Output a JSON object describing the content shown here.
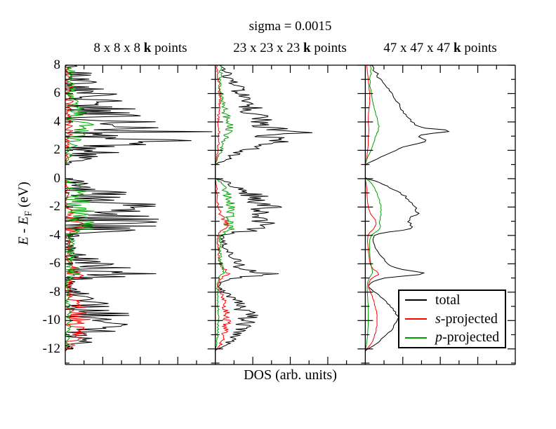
{
  "figure": {
    "title": "sigma = 0.0015",
    "background_color": "#ffffff"
  },
  "chart_data": {
    "type": "line",
    "title": "sigma = 0.0015",
    "xlabel": "DOS (arb. units)",
    "ylabel": "E - EF (eV)",
    "ylabel_parts": {
      "e": "E",
      "dash": " - ",
      "sub": "F",
      "unit": " (eV)"
    },
    "orientation": "DOS value on x axis, energy on y axis, three side-by-side panels",
    "x_axis": {
      "label": "DOS (arb. units)",
      "numeric_labels_shown": false,
      "major_divisions_per_panel": 4,
      "minor_per_major": 2
    },
    "energy_axis": {
      "min": -13.1,
      "max": 8,
      "major_ticks": [
        8,
        6,
        4,
        2,
        0,
        -2,
        -4,
        -6,
        -8,
        -10,
        -12
      ],
      "tick_labels": [
        "8",
        "6",
        "4",
        "2",
        "0",
        "-2",
        "-4",
        "-6",
        "-8",
        "-10",
        "-12"
      ],
      "minor_tick_step": 1
    },
    "panels": [
      {
        "title_prefix": "8 x 8 x 8 ",
        "title_bold": "k",
        "title_suffix": " points",
        "sampling_noise": 1.15,
        "noise_seed": 8,
        "sample_step_eV": 0.07
      },
      {
        "title_prefix": "23 x 23 x 23 ",
        "title_bold": "k",
        "title_suffix": " points",
        "sampling_noise": 0.35,
        "noise_seed": 23,
        "sample_step_eV": 0.07
      },
      {
        "title_prefix": "47 x 47 x 47 ",
        "title_bold": "k",
        "title_suffix": " points",
        "sampling_noise": 0.04,
        "noise_seed": 47,
        "sample_step_eV": 0.12
      }
    ],
    "series": [
      {
        "name": "total",
        "color": "#000000",
        "points": [
          [
            8,
            0.04
          ],
          [
            7.8,
            0.06
          ],
          [
            7.6,
            0.05
          ],
          [
            7.4,
            0.09
          ],
          [
            7.2,
            0.07
          ],
          [
            7,
            0.11
          ],
          [
            6.8,
            0.12
          ],
          [
            6.6,
            0.13
          ],
          [
            6.4,
            0.15
          ],
          [
            6.2,
            0.16
          ],
          [
            6,
            0.18
          ],
          [
            5.8,
            0.19
          ],
          [
            5.6,
            0.2
          ],
          [
            5.4,
            0.22
          ],
          [
            5.2,
            0.23
          ],
          [
            5,
            0.24
          ],
          [
            4.8,
            0.25
          ],
          [
            4.6,
            0.26
          ],
          [
            4.4,
            0.28
          ],
          [
            4.2,
            0.3
          ],
          [
            4,
            0.31
          ],
          [
            3.8,
            0.33
          ],
          [
            3.7,
            0.35
          ],
          [
            3.6,
            0.38
          ],
          [
            3.5,
            0.45
          ],
          [
            3.4,
            0.56
          ],
          [
            3.35,
            0.6
          ],
          [
            3.25,
            0.5
          ],
          [
            3.1,
            0.38
          ],
          [
            3,
            0.34
          ],
          [
            2.9,
            0.36
          ],
          [
            2.8,
            0.4
          ],
          [
            2.7,
            0.42
          ],
          [
            2.6,
            0.4
          ],
          [
            2.5,
            0.36
          ],
          [
            2.4,
            0.32
          ],
          [
            2.2,
            0.25
          ],
          [
            2,
            0.2
          ],
          [
            1.8,
            0.16
          ],
          [
            1.6,
            0.12
          ],
          [
            1.4,
            0.08
          ],
          [
            1.2,
            0.04
          ],
          [
            1.05,
            0.01
          ],
          [
            1,
            0
          ],
          [
            0,
            0
          ],
          [
            -0.1,
            0.05
          ],
          [
            -0.3,
            0.1
          ],
          [
            -0.6,
            0.16
          ],
          [
            -0.9,
            0.21
          ],
          [
            -1.2,
            0.26
          ],
          [
            -1.5,
            0.29
          ],
          [
            -1.8,
            0.31
          ],
          [
            -2.1,
            0.34
          ],
          [
            -2.4,
            0.35
          ],
          [
            -2.6,
            0.33
          ],
          [
            -2.8,
            0.29
          ],
          [
            -3,
            0.29
          ],
          [
            -3.2,
            0.31
          ],
          [
            -3.4,
            0.31
          ],
          [
            -3.6,
            0.28
          ],
          [
            -3.7,
            0.2
          ],
          [
            -3.8,
            0.12
          ],
          [
            -4,
            0.06
          ],
          [
            -4.3,
            0.05
          ],
          [
            -4.7,
            0.06
          ],
          [
            -5.1,
            0.08
          ],
          [
            -5.5,
            0.11
          ],
          [
            -5.9,
            0.14
          ],
          [
            -6.2,
            0.18
          ],
          [
            -6.4,
            0.24
          ],
          [
            -6.55,
            0.34
          ],
          [
            -6.7,
            0.42
          ],
          [
            -6.8,
            0.34
          ],
          [
            -6.9,
            0.22
          ],
          [
            -7,
            0.13
          ],
          [
            -7.2,
            0.06
          ],
          [
            -7.4,
            0.03
          ],
          [
            -7.6,
            0.02
          ],
          [
            -7.9,
            0.05
          ],
          [
            -8.2,
            0.09
          ],
          [
            -8.6,
            0.13
          ],
          [
            -9,
            0.17
          ],
          [
            -9.4,
            0.2
          ],
          [
            -9.7,
            0.22
          ],
          [
            -10,
            0.22
          ],
          [
            -10.3,
            0.2
          ],
          [
            -10.7,
            0.17
          ],
          [
            -11.1,
            0.13
          ],
          [
            -11.5,
            0.09
          ],
          [
            -11.8,
            0.05
          ],
          [
            -12,
            0.02
          ],
          [
            -12.1,
            0
          ],
          [
            -13.1,
            0
          ]
        ]
      },
      {
        "name": "s-projected",
        "color": "#ff0000",
        "points": [
          [
            8,
            0.01
          ],
          [
            7.4,
            0.015
          ],
          [
            7,
            0.02
          ],
          [
            6.4,
            0.025
          ],
          [
            6,
            0.03
          ],
          [
            5.4,
            0.03
          ],
          [
            5,
            0.025
          ],
          [
            4.4,
            0.02
          ],
          [
            4,
            0.02
          ],
          [
            3.4,
            0.025
          ],
          [
            3,
            0.02
          ],
          [
            2.4,
            0.02
          ],
          [
            2,
            0.015
          ],
          [
            1.5,
            0.01
          ],
          [
            1.2,
            0.005
          ],
          [
            1,
            0
          ],
          [
            0,
            0
          ],
          [
            -0.3,
            0.005
          ],
          [
            -0.7,
            0.01
          ],
          [
            -1.2,
            0.012
          ],
          [
            -1.7,
            0.016
          ],
          [
            -2.1,
            0.022
          ],
          [
            -2.5,
            0.035
          ],
          [
            -2.8,
            0.06
          ],
          [
            -3,
            0.072
          ],
          [
            -3.2,
            0.072
          ],
          [
            -3.4,
            0.065
          ],
          [
            -3.6,
            0.05
          ],
          [
            -3.8,
            0.03
          ],
          [
            -4,
            0.018
          ],
          [
            -4.4,
            0.015
          ],
          [
            -4.8,
            0.018
          ],
          [
            -5.2,
            0.022
          ],
          [
            -5.7,
            0.027
          ],
          [
            -6.1,
            0.035
          ],
          [
            -6.4,
            0.055
          ],
          [
            -6.6,
            0.085
          ],
          [
            -6.75,
            0.09
          ],
          [
            -6.9,
            0.06
          ],
          [
            -7.1,
            0.035
          ],
          [
            -7.4,
            0.022
          ],
          [
            -7.7,
            0.022
          ],
          [
            -8,
            0.035
          ],
          [
            -8.4,
            0.05
          ],
          [
            -8.8,
            0.06
          ],
          [
            -9.2,
            0.07
          ],
          [
            -9.6,
            0.078
          ],
          [
            -10,
            0.08
          ],
          [
            -10.4,
            0.076
          ],
          [
            -10.8,
            0.07
          ],
          [
            -11.2,
            0.06
          ],
          [
            -11.6,
            0.042
          ],
          [
            -11.9,
            0.02
          ],
          [
            -12.05,
            0.006
          ],
          [
            -12.15,
            0
          ],
          [
            -13.1,
            0
          ]
        ]
      },
      {
        "name": "p-projected",
        "color": "#00a000",
        "points": [
          [
            8,
            0.03
          ],
          [
            7.8,
            0.04
          ],
          [
            7.6,
            0.034
          ],
          [
            7.4,
            0.04
          ],
          [
            7.2,
            0.03
          ],
          [
            7,
            0.03
          ],
          [
            6.8,
            0.034
          ],
          [
            6.6,
            0.03
          ],
          [
            6.4,
            0.034
          ],
          [
            6.2,
            0.038
          ],
          [
            6,
            0.04
          ],
          [
            5.8,
            0.044
          ],
          [
            5.6,
            0.048
          ],
          [
            5.4,
            0.05
          ],
          [
            5.2,
            0.054
          ],
          [
            5,
            0.06
          ],
          [
            4.8,
            0.064
          ],
          [
            4.6,
            0.07
          ],
          [
            4.4,
            0.074
          ],
          [
            4.2,
            0.08
          ],
          [
            4,
            0.084
          ],
          [
            3.8,
            0.09
          ],
          [
            3.6,
            0.09
          ],
          [
            3.4,
            0.086
          ],
          [
            3.2,
            0.076
          ],
          [
            3,
            0.07
          ],
          [
            2.8,
            0.064
          ],
          [
            2.6,
            0.06
          ],
          [
            2.4,
            0.05
          ],
          [
            2.2,
            0.044
          ],
          [
            2,
            0.04
          ],
          [
            1.8,
            0.03
          ],
          [
            1.6,
            0.02
          ],
          [
            1.4,
            0.012
          ],
          [
            1.2,
            0.006
          ],
          [
            1.05,
            0
          ],
          [
            0,
            0
          ],
          [
            -0.1,
            0.02
          ],
          [
            -0.3,
            0.04
          ],
          [
            -0.6,
            0.06
          ],
          [
            -0.9,
            0.074
          ],
          [
            -1.2,
            0.084
          ],
          [
            -1.5,
            0.094
          ],
          [
            -1.8,
            0.1
          ],
          [
            -2.1,
            0.104
          ],
          [
            -2.4,
            0.104
          ],
          [
            -2.7,
            0.1
          ],
          [
            -3,
            0.094
          ],
          [
            -3.3,
            0.1
          ],
          [
            -3.6,
            0.094
          ],
          [
            -3.8,
            0.06
          ],
          [
            -4,
            0.04
          ],
          [
            -4.3,
            0.03
          ],
          [
            -4.7,
            0.028
          ],
          [
            -5.1,
            0.03
          ],
          [
            -5.5,
            0.032
          ],
          [
            -6,
            0.036
          ],
          [
            -6.4,
            0.046
          ],
          [
            -6.6,
            0.05
          ],
          [
            -6.8,
            0.04
          ],
          [
            -7,
            0.026
          ],
          [
            -7.3,
            0.016
          ],
          [
            -7.7,
            0.012
          ],
          [
            -8.2,
            0.015
          ],
          [
            -8.8,
            0.018
          ],
          [
            -9.4,
            0.02
          ],
          [
            -10,
            0.02
          ],
          [
            -10.6,
            0.018
          ],
          [
            -11.2,
            0.014
          ],
          [
            -11.7,
            0.008
          ],
          [
            -12,
            0.003
          ],
          [
            -12.1,
            0
          ],
          [
            -13.1,
            0
          ]
        ]
      }
    ],
    "legend": {
      "position": "bottom-right inside third panel",
      "entries": [
        {
          "pre": "",
          "rest": "total"
        },
        {
          "pre": "s",
          "rest": "-projected"
        },
        {
          "pre": "p",
          "rest": "-projected"
        }
      ]
    }
  }
}
